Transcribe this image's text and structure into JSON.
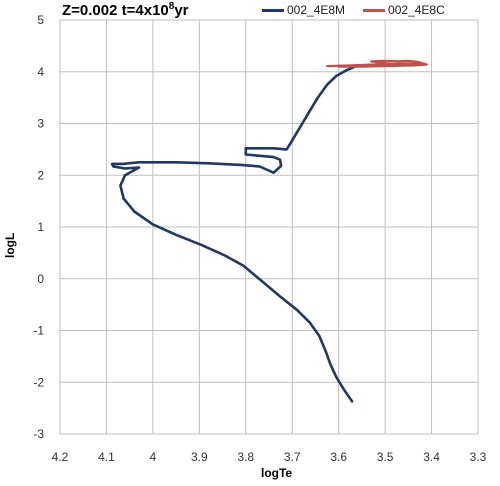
{
  "chart_data": {
    "type": "line",
    "title_main": "Z=0.002 t=4x10",
    "title_exp": "8",
    "title_tail": "yr",
    "xlabel": "logTe",
    "ylabel": "logL",
    "xlim": [
      4.2,
      3.3
    ],
    "ylim": [
      -3,
      5
    ],
    "x_reversed": true,
    "grid": true,
    "legend_position": "top",
    "x_ticks": [
      4.2,
      4.1,
      4.0,
      3.9,
      3.8,
      3.7,
      3.6,
      3.5,
      3.4,
      3.3
    ],
    "x_tick_labels": [
      "4.2",
      "4.1",
      "4",
      "3.9",
      "3.8",
      "3.7",
      "3.6",
      "3.5",
      "3.4",
      "3.3"
    ],
    "y_ticks": [
      -3,
      -2,
      -1,
      0,
      1,
      2,
      3,
      4,
      5
    ],
    "y_tick_labels": [
      "-3",
      "-2",
      "-1",
      "0",
      "1",
      "2",
      "3",
      "4",
      "5"
    ],
    "series": [
      {
        "name": "002_4E8M",
        "color": "#1f3864",
        "points": [
          [
            3.571,
            -2.37
          ],
          [
            3.588,
            -2.15
          ],
          [
            3.605,
            -1.9
          ],
          [
            3.618,
            -1.65
          ],
          [
            3.628,
            -1.4
          ],
          [
            3.642,
            -1.1
          ],
          [
            3.662,
            -0.85
          ],
          [
            3.69,
            -0.6
          ],
          [
            3.725,
            -0.35
          ],
          [
            3.765,
            -0.05
          ],
          [
            3.805,
            0.25
          ],
          [
            3.845,
            0.45
          ],
          [
            3.895,
            0.65
          ],
          [
            3.95,
            0.85
          ],
          [
            4.0,
            1.05
          ],
          [
            4.04,
            1.3
          ],
          [
            4.063,
            1.55
          ],
          [
            4.07,
            1.8
          ],
          [
            4.06,
            2.0
          ],
          [
            4.04,
            2.1
          ],
          [
            4.03,
            2.15
          ],
          [
            4.06,
            2.13
          ],
          [
            4.085,
            2.17
          ],
          [
            4.088,
            2.22
          ],
          [
            4.065,
            2.22
          ],
          [
            4.03,
            2.25
          ],
          [
            3.95,
            2.25
          ],
          [
            3.88,
            2.23
          ],
          [
            3.81,
            2.2
          ],
          [
            3.77,
            2.17
          ],
          [
            3.74,
            2.05
          ],
          [
            3.724,
            2.18
          ],
          [
            3.726,
            2.3
          ],
          [
            3.74,
            2.35
          ],
          [
            3.8,
            2.4
          ],
          [
            3.8,
            2.52
          ],
          [
            3.74,
            2.52
          ],
          [
            3.712,
            2.5
          ],
          [
            3.705,
            2.6
          ],
          [
            3.685,
            2.9
          ],
          [
            3.665,
            3.2
          ],
          [
            3.645,
            3.5
          ],
          [
            3.625,
            3.75
          ],
          [
            3.605,
            3.92
          ],
          [
            3.585,
            4.02
          ],
          [
            3.565,
            4.1
          ]
        ]
      },
      {
        "name": "002_4E8C",
        "color": "#c0504d",
        "points": [
          [
            3.625,
            4.11
          ],
          [
            3.58,
            4.12
          ],
          [
            3.55,
            4.13
          ],
          [
            3.5,
            4.15
          ],
          [
            3.45,
            4.16
          ],
          [
            3.41,
            4.14
          ],
          [
            3.44,
            4.12
          ],
          [
            3.48,
            4.14
          ],
          [
            3.53,
            4.2
          ],
          [
            3.5,
            4.21
          ],
          [
            3.47,
            4.2
          ],
          [
            3.45,
            4.21
          ],
          [
            3.43,
            4.19
          ],
          [
            3.41,
            4.14
          ],
          [
            3.45,
            4.12
          ],
          [
            3.5,
            4.11
          ],
          [
            3.55,
            4.1
          ],
          [
            3.6,
            4.1
          ]
        ]
      }
    ]
  }
}
